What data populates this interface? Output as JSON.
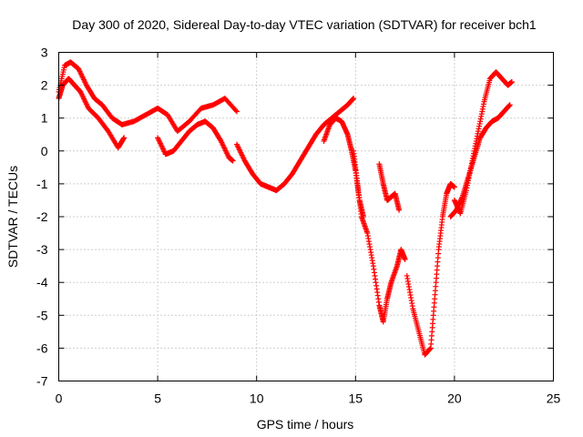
{
  "chart_data": {
    "type": "scatter",
    "title": "Day 300 of 2020, Sidereal Day-to-day VTEC variation (SDTVAR) for receiver bch1",
    "xlabel": "GPS time / hours",
    "ylabel": "SDTVAR / TECUs",
    "xlim": [
      0,
      25
    ],
    "ylim": [
      -7,
      3
    ],
    "xticks": [
      0,
      5,
      10,
      15,
      20,
      25
    ],
    "yticks": [
      -7,
      -6,
      -5,
      -4,
      -3,
      -2,
      -1,
      0,
      1,
      2,
      3
    ],
    "grid": true,
    "marker": "+",
    "color": "#ff0000",
    "series": [
      {
        "x": [
          0.0,
          0.3,
          0.6,
          1.0,
          1.4,
          1.8,
          2.2,
          2.7,
          3.2,
          3.8,
          4.4,
          5.0,
          5.5,
          6.0,
          6.6,
          7.2,
          7.8,
          8.4,
          9.0
        ],
        "y": [
          1.8,
          2.6,
          2.7,
          2.5,
          2.0,
          1.6,
          1.4,
          1.0,
          0.8,
          0.9,
          1.1,
          1.3,
          1.1,
          0.6,
          0.9,
          1.3,
          1.4,
          1.6,
          1.2
        ]
      },
      {
        "x": [
          9.0,
          9.4,
          9.8,
          10.2,
          10.6,
          11.0,
          11.4,
          11.8,
          12.2,
          12.6,
          13.0,
          13.4,
          13.8,
          14.2,
          14.6,
          14.9
        ],
        "y": [
          0.2,
          -0.3,
          -0.7,
          -1.0,
          -1.1,
          -1.2,
          -1.0,
          -0.7,
          -0.3,
          0.1,
          0.5,
          0.8,
          1.0,
          1.2,
          1.4,
          1.6
        ]
      },
      {
        "x": [
          14.9,
          15.1,
          15.3,
          15.6,
          15.9,
          16.2,
          16.4,
          16.6,
          16.8,
          17.1,
          17.3,
          17.5
        ],
        "y": [
          0.0,
          -1.0,
          -2.0,
          -2.5,
          -3.5,
          -4.7,
          -5.2,
          -4.5,
          -4.0,
          -3.5,
          -3.0,
          -3.3
        ]
      },
      {
        "x": [
          16.2,
          16.4,
          16.6,
          16.8,
          17.0,
          17.2
        ],
        "y": [
          -0.4,
          -1.0,
          -1.5,
          -1.4,
          -1.3,
          -1.8
        ]
      },
      {
        "x": [
          17.6,
          17.9,
          18.2,
          18.5,
          18.8,
          19.0,
          19.2,
          19.4,
          19.6,
          19.8,
          20.0
        ],
        "y": [
          -3.8,
          -4.8,
          -5.5,
          -6.2,
          -6.0,
          -4.5,
          -3.0,
          -2.0,
          -1.3,
          -1.0,
          -1.1
        ]
      },
      {
        "x": [
          20.0,
          20.3,
          20.6,
          20.9,
          21.2,
          21.5,
          21.8,
          22.1,
          22.4,
          22.7,
          22.9
        ],
        "y": [
          -1.5,
          -1.9,
          -1.2,
          -0.3,
          0.6,
          1.5,
          2.2,
          2.4,
          2.2,
          2.0,
          2.1
        ]
      },
      {
        "x": [
          0.0,
          0.2,
          0.5,
          0.8,
          1.1,
          1.5,
          2.0,
          2.5,
          3.0,
          3.3
        ],
        "y": [
          1.6,
          2.0,
          2.2,
          2.0,
          1.8,
          1.3,
          1.0,
          0.6,
          0.1,
          0.4
        ]
      },
      {
        "x": [
          5.0,
          5.4,
          5.8,
          6.2,
          6.6,
          7.0,
          7.4,
          7.8,
          8.2,
          8.6,
          8.8
        ],
        "y": [
          0.4,
          -0.1,
          0.0,
          0.3,
          0.6,
          0.8,
          0.9,
          0.7,
          0.3,
          -0.2,
          -0.3
        ]
      },
      {
        "x": [
          19.8,
          20.1,
          20.4,
          20.7,
          21.0,
          21.3,
          21.6,
          21.9,
          22.2,
          22.5,
          22.8
        ],
        "y": [
          -2.0,
          -1.8,
          -1.4,
          -0.8,
          -0.2,
          0.4,
          0.7,
          0.9,
          1.0,
          1.2,
          1.4
        ]
      },
      {
        "x": [
          13.4,
          13.7,
          14.0,
          14.3,
          14.6,
          14.8,
          15.0,
          15.2,
          15.4
        ],
        "y": [
          0.3,
          0.8,
          1.0,
          0.9,
          0.5,
          0.0,
          -0.6,
          -1.5,
          -2.0
        ]
      }
    ]
  }
}
